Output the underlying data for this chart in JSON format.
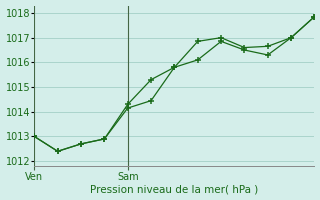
{
  "series1_x": [
    0,
    1,
    2,
    3,
    4,
    5,
    6,
    7,
    8,
    9,
    10,
    11,
    12
  ],
  "series1_y": [
    1013.0,
    1012.4,
    1012.7,
    1012.9,
    1014.3,
    1015.3,
    1015.8,
    1016.85,
    1017.0,
    1016.6,
    1016.65,
    1017.0,
    1017.85
  ],
  "series2_x": [
    0,
    1,
    2,
    3,
    4,
    5,
    6,
    7,
    8,
    9,
    10,
    11,
    12
  ],
  "series2_y": [
    1013.0,
    1012.4,
    1012.7,
    1012.9,
    1014.15,
    1014.45,
    1015.8,
    1016.1,
    1016.85,
    1016.5,
    1016.3,
    1017.0,
    1017.85
  ],
  "line_color": "#1a6b1a",
  "bg_color": "#d4eeea",
  "grid_color": "#aad4cc",
  "text_color": "#1a6b1a",
  "xlabel": "Pression niveau de la mer( hPa )",
  "ylim": [
    1011.8,
    1018.3
  ],
  "yticks": [
    1012,
    1013,
    1014,
    1015,
    1016,
    1017,
    1018
  ],
  "ven_x": 0.0,
  "sam_x": 4.0,
  "xlim": [
    0,
    12
  ],
  "xtick_ven": 0.0,
  "xtick_sam": 4.0
}
